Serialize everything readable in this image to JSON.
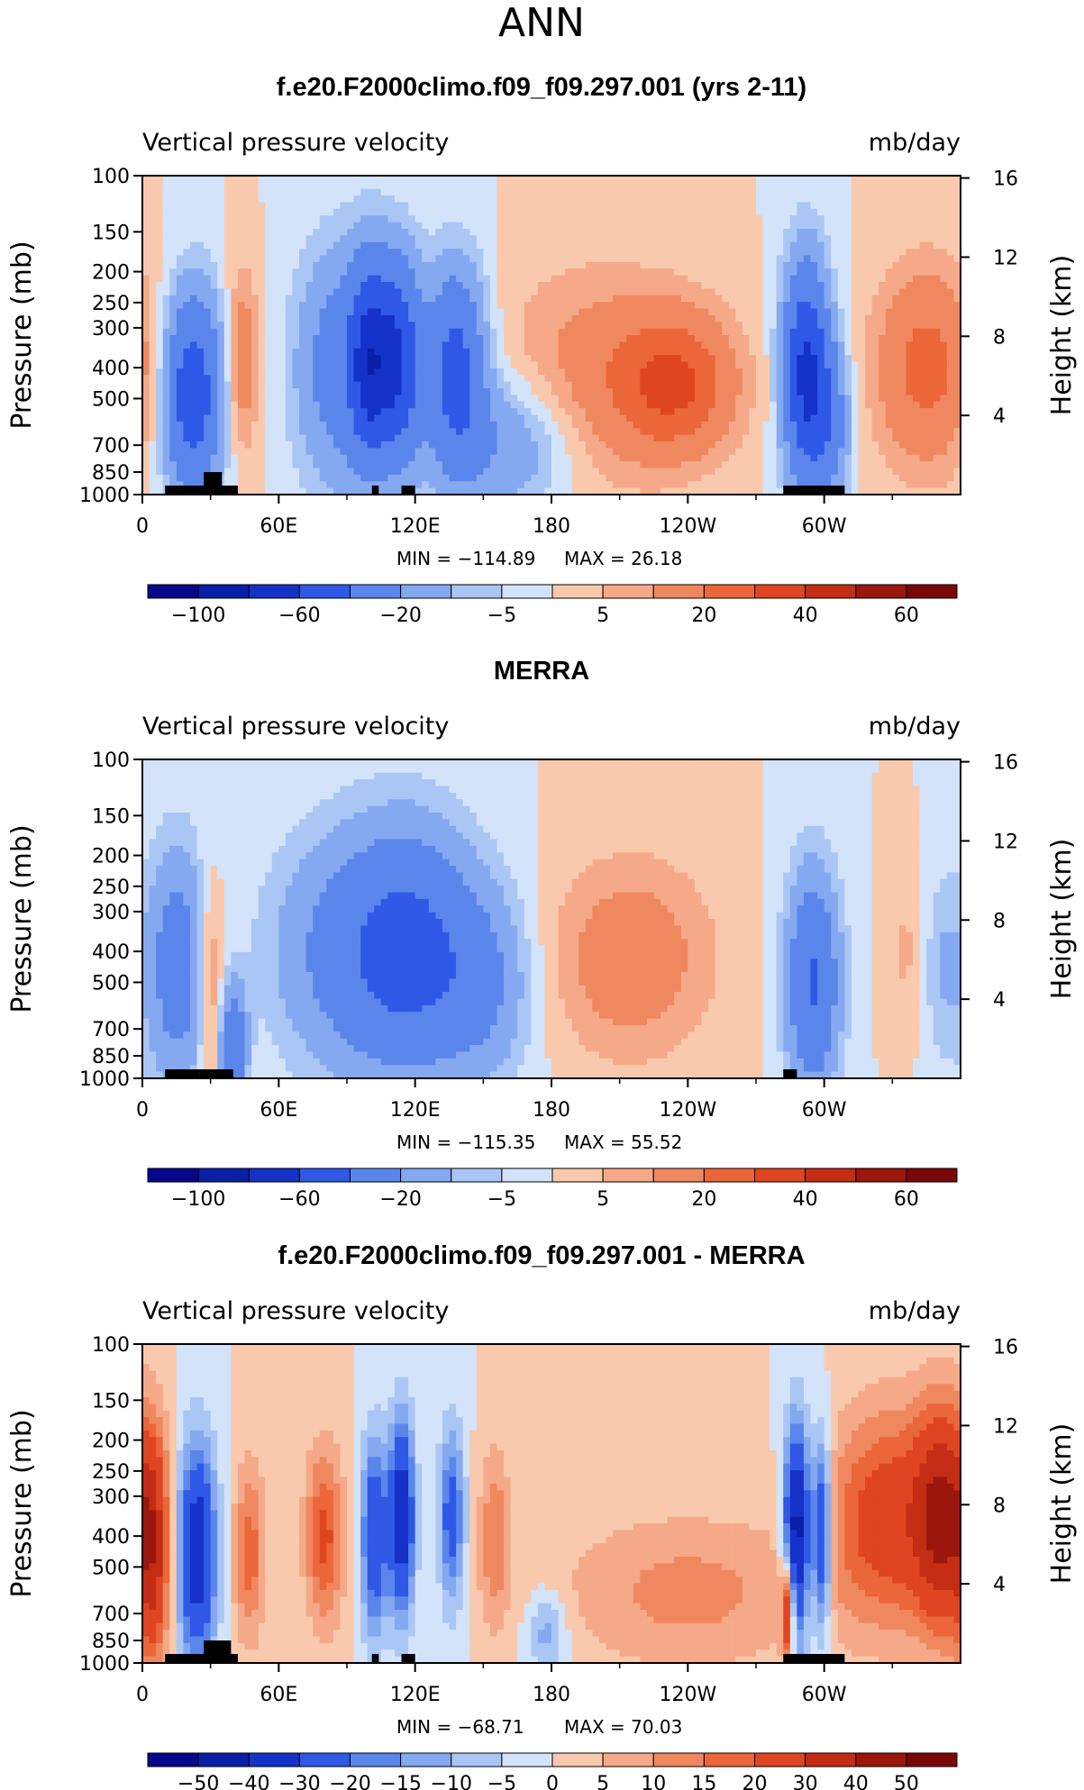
{
  "page_title": "ANN",
  "colors": {
    "fill_colors": [
      "#07078b",
      "#0a1fa8",
      "#1432c8",
      "#2f58e6",
      "#5a86ec",
      "#84a9f0",
      "#aac6f5",
      "#d3e3fa",
      "#fce8da",
      "#f9c9ad",
      "#f5a988",
      "#f0885f",
      "#eb6638",
      "#df4520",
      "#c42c14",
      "#9b170d",
      "#7b0808"
    ],
    "land": "#000000"
  },
  "chart_data": [
    {
      "type": "heatmap",
      "title": "f.e20.F2000climo.f09_f09.297.001 (yrs 2-11)",
      "variable_label": "Vertical pressure velocity",
      "units": "mb/day",
      "ylabel": "Pressure (mb)",
      "ylabel_right": "Height (km)",
      "x_ticks": [
        "0",
        "60E",
        "120E",
        "180",
        "120W",
        "60W"
      ],
      "y_ticks": [
        "100",
        "150",
        "200",
        "250",
        "300",
        "400",
        "500",
        "700",
        "850",
        "1000"
      ],
      "y_ticks_right": [
        "16",
        "12",
        "8",
        "4"
      ],
      "ylim": [
        1000,
        100
      ],
      "xlim": [
        0,
        360
      ],
      "min_text": "MIN = −114.89",
      "max_text": "MAX =   26.18",
      "colorbar_levels": [
        -120,
        -100,
        -80,
        -60,
        -40,
        -20,
        -10,
        -5,
        0,
        5,
        10,
        20,
        30,
        40,
        50,
        60,
        70
      ],
      "colorbar_labels": [
        "−100",
        "−60",
        "−20",
        "−5",
        "5",
        "20",
        "40",
        "60"
      ],
      "features": [
        {
          "lon": 22,
          "p": 480,
          "value": -55,
          "dlon": 9,
          "dp": 0.5
        },
        {
          "lon": 44,
          "p": 380,
          "value": 18,
          "dlon": 5,
          "dp": 0.45
        },
        {
          "lon": 88,
          "p": 400,
          "value": -30,
          "dlon": 14,
          "dp": 0.6
        },
        {
          "lon": 100,
          "p": 380,
          "value": -50,
          "dlon": 6,
          "dp": 0.5
        },
        {
          "lon": 113,
          "p": 380,
          "value": -55,
          "dlon": 7,
          "dp": 0.5
        },
        {
          "lon": 138,
          "p": 400,
          "value": -48,
          "dlon": 9,
          "dp": 0.5
        },
        {
          "lon": 160,
          "p": 700,
          "value": -20,
          "dlon": 20,
          "dp": 0.35
        },
        {
          "lon": 200,
          "p": 420,
          "value": 14,
          "dlon": 30,
          "dp": 0.55
        },
        {
          "lon": 235,
          "p": 450,
          "value": 28,
          "dlon": 18,
          "dp": 0.35
        },
        {
          "lon": 292,
          "p": 420,
          "value": -65,
          "dlon": 7,
          "dp": 0.55
        },
        {
          "lon": 303,
          "p": 600,
          "value": -25,
          "dlon": 6,
          "dp": 0.4
        },
        {
          "lon": 345,
          "p": 400,
          "value": 24,
          "dlon": 16,
          "dp": 0.5
        }
      ],
      "land_segments": [
        {
          "lon0": 10,
          "lon1": 42,
          "top_p": 1000
        },
        {
          "lon0": 27,
          "lon1": 35,
          "top_p": 850
        },
        {
          "lon0": 101,
          "lon1": 104,
          "top_p": 960
        },
        {
          "lon0": 114,
          "lon1": 120,
          "top_p": 960
        },
        {
          "lon0": 282,
          "lon1": 309,
          "top_p": 960
        }
      ]
    },
    {
      "type": "heatmap",
      "title": "MERRA",
      "variable_label": "Vertical pressure velocity",
      "units": "mb/day",
      "ylabel": "Pressure (mb)",
      "ylabel_right": "Height (km)",
      "x_ticks": [
        "0",
        "60E",
        "120E",
        "180",
        "120W",
        "60W"
      ],
      "y_ticks": [
        "100",
        "150",
        "200",
        "250",
        "300",
        "400",
        "500",
        "700",
        "850",
        "1000"
      ],
      "y_ticks_right": [
        "16",
        "12",
        "8",
        "4"
      ],
      "ylim": [
        1000,
        100
      ],
      "xlim": [
        0,
        360
      ],
      "min_text": "MIN = −115.35",
      "max_text": "MAX =   55.52",
      "colorbar_levels": [
        -120,
        -100,
        -80,
        -60,
        -40,
        -20,
        -10,
        -5,
        0,
        5,
        10,
        20,
        30,
        40,
        50,
        60,
        70
      ],
      "colorbar_labels": [
        "−100",
        "−60",
        "−20",
        "−5",
        "5",
        "20",
        "40",
        "60"
      ],
      "features": [
        {
          "lon": 15,
          "p": 450,
          "value": -30,
          "dlon": 9,
          "dp": 0.6
        },
        {
          "lon": 30,
          "p": 500,
          "value": 15,
          "dlon": 4,
          "dp": 0.5
        },
        {
          "lon": 40,
          "p": 800,
          "value": -35,
          "dlon": 4,
          "dp": 0.3
        },
        {
          "lon": 95,
          "p": 400,
          "value": -28,
          "dlon": 25,
          "dp": 0.6
        },
        {
          "lon": 120,
          "p": 400,
          "value": -32,
          "dlon": 18,
          "dp": 0.6
        },
        {
          "lon": 150,
          "p": 500,
          "value": -20,
          "dlon": 15,
          "dp": 0.5
        },
        {
          "lon": 215,
          "p": 420,
          "value": 16,
          "dlon": 25,
          "dp": 0.5
        },
        {
          "lon": 295,
          "p": 500,
          "value": -42,
          "dlon": 8,
          "dp": 0.55
        },
        {
          "lon": 336,
          "p": 400,
          "value": 6,
          "dlon": 6,
          "dp": 0.4
        },
        {
          "lon": 352,
          "p": 450,
          "value": -10,
          "dlon": 6,
          "dp": 0.5
        }
      ],
      "land_segments": [
        {
          "lon0": 10,
          "lon1": 25,
          "top_p": 975
        },
        {
          "lon0": 25,
          "lon1": 40,
          "top_p": 950
        },
        {
          "lon0": 282,
          "lon1": 288,
          "top_p": 985
        }
      ]
    },
    {
      "type": "heatmap",
      "title": "f.e20.F2000climo.f09_f09.297.001 - MERRA",
      "variable_label": "Vertical pressure velocity",
      "units": "mb/day",
      "ylabel": "Pressure (mb)",
      "ylabel_right": "Height (km)",
      "x_ticks": [
        "0",
        "60E",
        "120E",
        "180",
        "120W",
        "60W"
      ],
      "y_ticks": [
        "100",
        "150",
        "200",
        "250",
        "300",
        "400",
        "500",
        "700",
        "850",
        "1000"
      ],
      "y_ticks_right": [
        "16",
        "12",
        "8",
        "4"
      ],
      "ylim": [
        1000,
        100
      ],
      "xlim": [
        0,
        360
      ],
      "min_text": "MIN = −68.71",
      "max_text": "MAX =   70.03",
      "colorbar_levels": [
        -60,
        -50,
        -40,
        -30,
        -20,
        -15,
        -10,
        -5,
        0,
        5,
        10,
        15,
        20,
        30,
        40,
        50,
        60
      ],
      "colorbar_labels": [
        "−50",
        "−40",
        "−30",
        "−20",
        "−15",
        "−10",
        "−5",
        "0",
        "5",
        "10",
        "15",
        "20",
        "30",
        "40",
        "50"
      ],
      "features": [
        {
          "lon": 5,
          "p": 450,
          "value": 28,
          "dlon": 5,
          "dp": 0.6
        },
        {
          "lon": 24,
          "p": 450,
          "value": -40,
          "dlon": 6,
          "dp": 0.55
        },
        {
          "lon": 47,
          "p": 450,
          "value": 18,
          "dlon": 5,
          "dp": 0.45
        },
        {
          "lon": 80,
          "p": 400,
          "value": 22,
          "dlon": 6,
          "dp": 0.45
        },
        {
          "lon": 102,
          "p": 400,
          "value": -30,
          "dlon": 4,
          "dp": 0.5
        },
        {
          "lon": 114,
          "p": 350,
          "value": -40,
          "dlon": 4,
          "dp": 0.5
        },
        {
          "lon": 136,
          "p": 350,
          "value": -25,
          "dlon": 4,
          "dp": 0.45
        },
        {
          "lon": 155,
          "p": 400,
          "value": 14,
          "dlon": 5,
          "dp": 0.45
        },
        {
          "lon": 178,
          "p": 800,
          "value": -14,
          "dlon": 6,
          "dp": 0.2
        },
        {
          "lon": 240,
          "p": 600,
          "value": 12,
          "dlon": 40,
          "dp": 0.4
        },
        {
          "lon": 288,
          "p": 400,
          "value": -50,
          "dlon": 4,
          "dp": 0.55
        },
        {
          "lon": 299,
          "p": 400,
          "value": -35,
          "dlon": 3,
          "dp": 0.5
        },
        {
          "lon": 284,
          "p": 700,
          "value": 35,
          "dlon": 2,
          "dp": 0.25
        },
        {
          "lon": 330,
          "p": 350,
          "value": 26,
          "dlon": 20,
          "dp": 0.55
        },
        {
          "lon": 352,
          "p": 350,
          "value": 32,
          "dlon": 8,
          "dp": 0.55
        }
      ],
      "land_segments": [
        {
          "lon0": 10,
          "lon1": 42,
          "top_p": 1000
        },
        {
          "lon0": 27,
          "lon1": 39,
          "top_p": 850
        },
        {
          "lon0": 101,
          "lon1": 104,
          "top_p": 960
        },
        {
          "lon0": 114,
          "lon1": 120,
          "top_p": 960
        },
        {
          "lon0": 282,
          "lon1": 309,
          "top_p": 960
        }
      ]
    }
  ]
}
